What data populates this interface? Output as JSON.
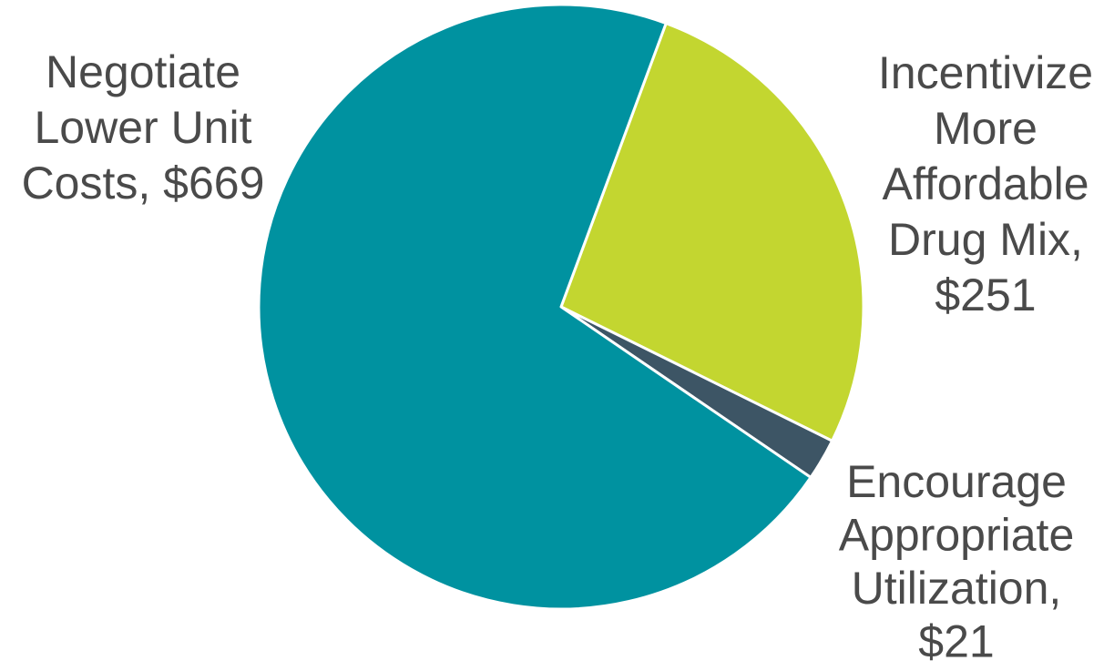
{
  "chart_data": {
    "type": "pie",
    "title": "",
    "slices": [
      {
        "name": "Incentivize More Affordable Drug Mix",
        "value": 251,
        "value_label": "$251",
        "color": "#C3D630",
        "label_lines": [
          "Incentivize",
          "More",
          "Affordable",
          "Drug Mix,",
          "$251"
        ]
      },
      {
        "name": "Encourage Appropriate Utilization",
        "value": 21,
        "value_label": "$21",
        "color": "#3D5565",
        "label_lines": [
          "Encourage",
          "Appropriate",
          "Utilization,",
          "$21"
        ]
      },
      {
        "name": "Negotiate Lower Unit Costs",
        "value": 669,
        "value_label": "$669",
        "color": "#0092A0",
        "label_lines": [
          "Negotiate",
          "Lower Unit",
          "Costs, $669"
        ]
      }
    ],
    "start_direction": "clockwise from upper-right",
    "legend": "none",
    "label_color": "#4A4A4A"
  }
}
